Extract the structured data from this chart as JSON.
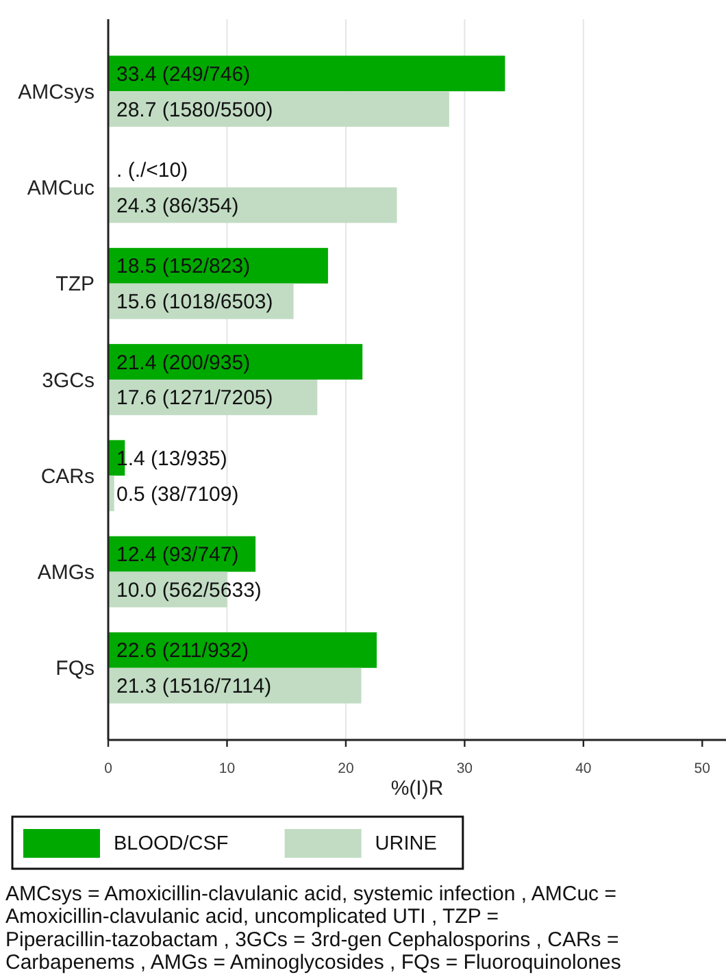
{
  "chart_data": {
    "type": "bar",
    "orientation": "horizontal",
    "categories": [
      "AMCsys",
      "AMCuc",
      "TZP",
      "3GCs",
      "CARs",
      "AMGs",
      "FQs"
    ],
    "series": [
      {
        "name": "BLOOD/CSF",
        "color": "#00a900",
        "values": [
          33.4,
          null,
          18.5,
          21.4,
          1.4,
          12.4,
          22.6
        ],
        "value_labels": [
          "33.4 (249/746)",
          ". (./<10)",
          "18.5 (152/823)",
          "21.4 (200/935)",
          "1.4 (13/935)",
          "12.4 (93/747)",
          "22.6 (211/932)"
        ]
      },
      {
        "name": "URINE",
        "color": "#c1dcc3",
        "values": [
          28.7,
          24.3,
          15.6,
          17.6,
          0.5,
          10.0,
          21.3
        ],
        "value_labels": [
          "28.7 (1580/5500)",
          "24.3 (86/354)",
          "15.6 (1018/6503)",
          "17.6 (1271/7205)",
          "0.5 (38/7109)",
          "10.0 (562/5633)",
          "21.3 (1516/7114)"
        ]
      }
    ],
    "xlabel": "%(I)R",
    "xlim": [
      0,
      52
    ],
    "xticks": [
      0,
      10,
      20,
      30,
      40,
      50
    ],
    "grid": "x",
    "legend": "bottom",
    "annotations": [
      "AMCsys = Amoxicillin-clavulanic acid, systemic infection , AMCuc = Amoxicillin-clavulanic acid, uncomplicated UTI , TZP = Piperacillin-tazobactam , 3GCs = 3rd-gen Cephalosporins , CARs = Carbapenems , AMGs = Aminoglycosides , FQs = Fluoroquinolones"
    ]
  }
}
